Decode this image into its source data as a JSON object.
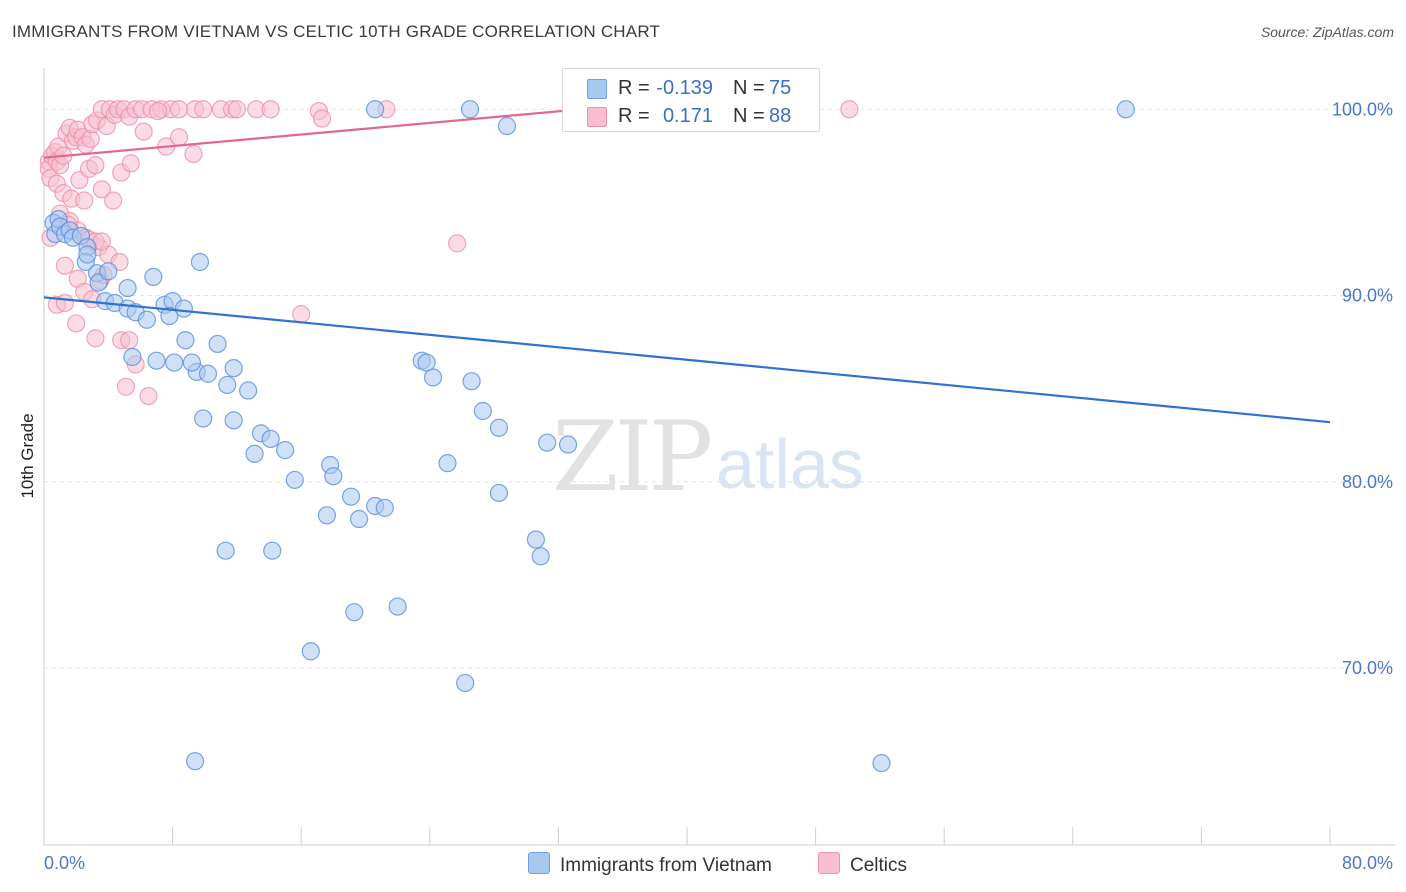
{
  "title": "IMMIGRANTS FROM VIETNAM VS CELTIC 10TH GRADE CORRELATION CHART",
  "source": "Source: ZipAtlas.com",
  "watermark": {
    "zip": "ZIP",
    "atlas": "atlas"
  },
  "legend": {
    "rows": [
      {
        "r_label": "R =",
        "r_value": "-0.139",
        "n_label": "N =",
        "n_value": "75",
        "color": "#a9c8f0",
        "border": "#6f9fe0"
      },
      {
        "r_label": "R =",
        "r_value": "0.171",
        "n_label": "N =",
        "n_value": "88",
        "color": "#f8bfd0",
        "border": "#ee90ae"
      }
    ]
  },
  "bottom_legend": {
    "items": [
      {
        "label": "Immigrants from Vietnam",
        "color": "#a9c8f0",
        "border": "#6f9fe0"
      },
      {
        "label": "Celtics",
        "color": "#f8bfd0",
        "border": "#ee90ae"
      }
    ]
  },
  "chart_data": {
    "type": "scatter",
    "xlabel": "",
    "ylabel": "10th Grade",
    "xlim": [
      0,
      80
    ],
    "ylim": [
      60.5,
      102
    ],
    "x_tick_labels": [
      "0.0%",
      "80.0%"
    ],
    "y_ticks": [
      100,
      90,
      80,
      70
    ],
    "y_tick_labels": [
      "100.0%",
      "90.0%",
      "80.0%",
      "70.0%"
    ],
    "grid": true,
    "series": [
      {
        "name": "Immigrants from Vietnam",
        "color": "#5a8fdc",
        "fill": "#a9c8f0",
        "trend": {
          "x": [
            0,
            80
          ],
          "y": [
            89.9,
            83.2
          ]
        },
        "points": [
          [
            0.6,
            93.9
          ],
          [
            0.7,
            93.3
          ],
          [
            0.9,
            94.1
          ],
          [
            1.0,
            93.7
          ],
          [
            1.3,
            93.3
          ],
          [
            1.6,
            93.5
          ],
          [
            1.8,
            93.1
          ],
          [
            2.3,
            93.2
          ],
          [
            2.7,
            92.6
          ],
          [
            2.6,
            91.8
          ],
          [
            2.7,
            92.2
          ],
          [
            3.3,
            91.2
          ],
          [
            3.4,
            90.7
          ],
          [
            3.8,
            89.7
          ],
          [
            4.0,
            91.3
          ],
          [
            5.2,
            90.4
          ],
          [
            4.4,
            89.6
          ],
          [
            5.2,
            89.3
          ],
          [
            5.7,
            89.1
          ],
          [
            6.4,
            88.7
          ],
          [
            6.8,
            91.0
          ],
          [
            7.5,
            89.5
          ],
          [
            8.0,
            89.7
          ],
          [
            7.8,
            88.9
          ],
          [
            8.7,
            89.3
          ],
          [
            9.7,
            91.8
          ],
          [
            8.8,
            87.6
          ],
          [
            9.5,
            85.9
          ],
          [
            10.2,
            85.8
          ],
          [
            10.8,
            87.4
          ],
          [
            5.5,
            86.7
          ],
          [
            7.0,
            86.5
          ],
          [
            8.1,
            86.4
          ],
          [
            9.2,
            86.4
          ],
          [
            11.8,
            86.1
          ],
          [
            11.4,
            85.2
          ],
          [
            9.9,
            83.4
          ],
          [
            11.8,
            83.3
          ],
          [
            12.7,
            84.9
          ],
          [
            13.1,
            81.5
          ],
          [
            13.5,
            82.6
          ],
          [
            14.1,
            82.3
          ],
          [
            15.0,
            81.7
          ],
          [
            15.6,
            80.1
          ],
          [
            17.8,
            80.9
          ],
          [
            18.0,
            80.3
          ],
          [
            19.1,
            79.2
          ],
          [
            17.6,
            78.2
          ],
          [
            19.6,
            78.0
          ],
          [
            20.6,
            78.7
          ],
          [
            21.2,
            78.6
          ],
          [
            23.5,
            86.5
          ],
          [
            24.2,
            85.6
          ],
          [
            23.8,
            86.4
          ],
          [
            26.6,
            85.4
          ],
          [
            27.3,
            83.8
          ],
          [
            28.3,
            82.9
          ],
          [
            25.1,
            81.0
          ],
          [
            28.3,
            79.4
          ],
          [
            31.3,
            82.1
          ],
          [
            32.6,
            82.0
          ],
          [
            30.6,
            76.9
          ],
          [
            30.9,
            76.0
          ],
          [
            11.3,
            76.3
          ],
          [
            14.2,
            76.3
          ],
          [
            19.3,
            73.0
          ],
          [
            22.0,
            73.3
          ],
          [
            16.6,
            70.9
          ],
          [
            26.2,
            69.2
          ],
          [
            9.4,
            65.0
          ],
          [
            52.1,
            64.9
          ],
          [
            20.6,
            100.0
          ],
          [
            26.5,
            100.0
          ],
          [
            28.8,
            99.1
          ],
          [
            67.3,
            100.0
          ]
        ]
      },
      {
        "name": "Celtics",
        "color": "#ee90ae",
        "fill": "#f8bfd0",
        "trend": {
          "x": [
            0,
            45
          ],
          "y": [
            97.4,
            100.9
          ]
        },
        "points": [
          [
            0.3,
            97.2
          ],
          [
            0.3,
            96.8
          ],
          [
            0.4,
            96.3
          ],
          [
            0.5,
            97.5
          ],
          [
            0.7,
            97.7
          ],
          [
            0.8,
            97.2
          ],
          [
            0.9,
            98.0
          ],
          [
            1.0,
            97.0
          ],
          [
            1.2,
            97.5
          ],
          [
            1.4,
            98.7
          ],
          [
            1.6,
            99.0
          ],
          [
            1.8,
            98.3
          ],
          [
            2.0,
            98.5
          ],
          [
            2.1,
            98.9
          ],
          [
            2.4,
            98.5
          ],
          [
            2.6,
            98.1
          ],
          [
            2.9,
            98.4
          ],
          [
            3.0,
            99.2
          ],
          [
            3.3,
            99.4
          ],
          [
            3.6,
            100.0
          ],
          [
            3.9,
            99.1
          ],
          [
            4.1,
            100.0
          ],
          [
            4.4,
            99.7
          ],
          [
            4.6,
            100.0
          ],
          [
            5.0,
            100.0
          ],
          [
            5.3,
            99.6
          ],
          [
            5.7,
            100.0
          ],
          [
            6.1,
            100.0
          ],
          [
            6.7,
            100.0
          ],
          [
            7.3,
            100.0
          ],
          [
            7.9,
            100.0
          ],
          [
            8.4,
            100.0
          ],
          [
            9.4,
            100.0
          ],
          [
            9.9,
            100.0
          ],
          [
            11.0,
            100.0
          ],
          [
            11.7,
            100.0
          ],
          [
            12.0,
            100.0
          ],
          [
            13.2,
            100.0
          ],
          [
            14.1,
            100.0
          ],
          [
            17.1,
            99.9
          ],
          [
            0.8,
            96.0
          ],
          [
            1.2,
            95.5
          ],
          [
            1.7,
            95.2
          ],
          [
            2.2,
            96.2
          ],
          [
            2.5,
            95.1
          ],
          [
            2.8,
            96.8
          ],
          [
            3.2,
            97.0
          ],
          [
            3.6,
            95.7
          ],
          [
            4.3,
            95.1
          ],
          [
            4.8,
            96.6
          ],
          [
            5.4,
            97.1
          ],
          [
            6.2,
            98.8
          ],
          [
            7.1,
            99.9
          ],
          [
            7.6,
            98.0
          ],
          [
            8.4,
            98.5
          ],
          [
            9.3,
            97.6
          ],
          [
            1.0,
            94.4
          ],
          [
            1.6,
            94.0
          ],
          [
            2.1,
            93.5
          ],
          [
            2.6,
            93.1
          ],
          [
            3.4,
            92.6
          ],
          [
            4.0,
            92.2
          ],
          [
            4.7,
            91.8
          ],
          [
            0.4,
            93.1
          ],
          [
            1.5,
            93.8
          ],
          [
            2.8,
            93.0
          ],
          [
            3.2,
            92.9
          ],
          [
            3.6,
            92.9
          ],
          [
            1.3,
            91.6
          ],
          [
            2.1,
            90.9
          ],
          [
            3.5,
            90.8
          ],
          [
            0.8,
            89.5
          ],
          [
            1.3,
            89.6
          ],
          [
            2.5,
            90.2
          ],
          [
            3.0,
            89.8
          ],
          [
            3.7,
            91.1
          ],
          [
            2.0,
            88.5
          ],
          [
            3.2,
            87.7
          ],
          [
            4.8,
            87.6
          ],
          [
            5.3,
            87.6
          ],
          [
            5.1,
            85.1
          ],
          [
            6.5,
            84.6
          ],
          [
            5.7,
            86.3
          ],
          [
            16.0,
            89.0
          ],
          [
            25.7,
            92.8
          ],
          [
            50.1,
            100.0
          ],
          [
            17.3,
            99.5
          ],
          [
            21.3,
            100.0
          ]
        ]
      }
    ]
  }
}
